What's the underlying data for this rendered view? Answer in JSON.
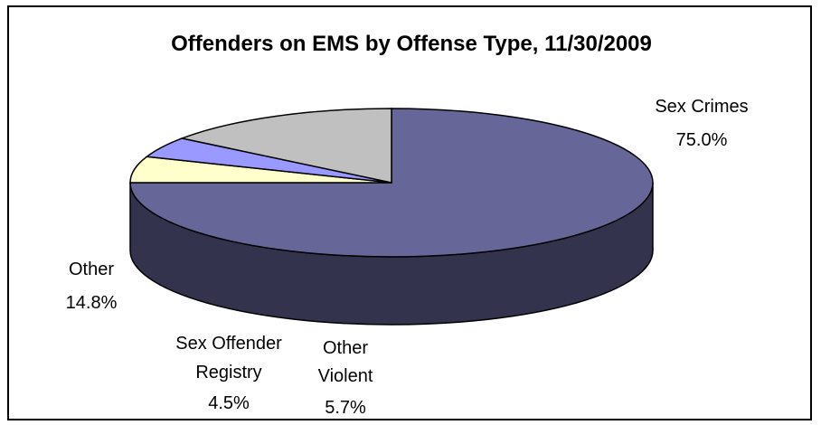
{
  "chart_data": {
    "type": "pie",
    "title": "Offenders on EMS by Offense Type, 11/30/2009",
    "three_d": true,
    "legend": "none",
    "slices": [
      {
        "name": "Sex Crimes",
        "value": 75.0,
        "label": "75.0%",
        "color": "#666699"
      },
      {
        "name": "Other Violent",
        "value": 5.7,
        "label": "5.7%",
        "color": "#FFFFCC"
      },
      {
        "name": "Sex Offender Registry",
        "value": 4.5,
        "label": "4.5%",
        "color": "#9999FF"
      },
      {
        "name": "Other",
        "value": 14.8,
        "label": "14.8%",
        "color": "#C0C0C0"
      }
    ]
  }
}
